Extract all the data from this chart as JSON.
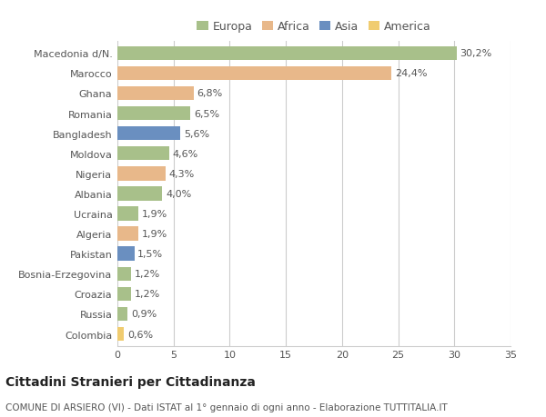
{
  "categories": [
    "Macedonia d/N.",
    "Marocco",
    "Ghana",
    "Romania",
    "Bangladesh",
    "Moldova",
    "Nigeria",
    "Albania",
    "Ucraina",
    "Algeria",
    "Pakistan",
    "Bosnia-Erzegovina",
    "Croazia",
    "Russia",
    "Colombia"
  ],
  "values": [
    30.2,
    24.4,
    6.8,
    6.5,
    5.6,
    4.6,
    4.3,
    4.0,
    1.9,
    1.9,
    1.5,
    1.2,
    1.2,
    0.9,
    0.6
  ],
  "labels": [
    "30,2%",
    "24,4%",
    "6,8%",
    "6,5%",
    "5,6%",
    "4,6%",
    "4,3%",
    "4,0%",
    "1,9%",
    "1,9%",
    "1,5%",
    "1,2%",
    "1,2%",
    "0,9%",
    "0,6%"
  ],
  "continents": [
    "Europa",
    "Africa",
    "Africa",
    "Europa",
    "Asia",
    "Europa",
    "Africa",
    "Europa",
    "Europa",
    "Africa",
    "Asia",
    "Europa",
    "Europa",
    "Europa",
    "America"
  ],
  "continent_colors": {
    "Europa": "#a8c08a",
    "Africa": "#e8b88a",
    "Asia": "#6a8fc0",
    "America": "#f0cc70"
  },
  "legend_order": [
    "Europa",
    "Africa",
    "Asia",
    "America"
  ],
  "xlim": [
    0,
    35
  ],
  "xticks": [
    0,
    5,
    10,
    15,
    20,
    25,
    30,
    35
  ],
  "title": "Cittadini Stranieri per Cittadinanza",
  "subtitle": "COMUNE DI ARSIERO (VI) - Dati ISTAT al 1° gennaio di ogni anno - Elaborazione TUTTITALIA.IT",
  "bg_color": "#ffffff",
  "grid_color": "#cccccc",
  "bar_height": 0.7,
  "title_fontsize": 10,
  "subtitle_fontsize": 7.5,
  "label_fontsize": 8,
  "tick_fontsize": 8,
  "legend_fontsize": 9
}
